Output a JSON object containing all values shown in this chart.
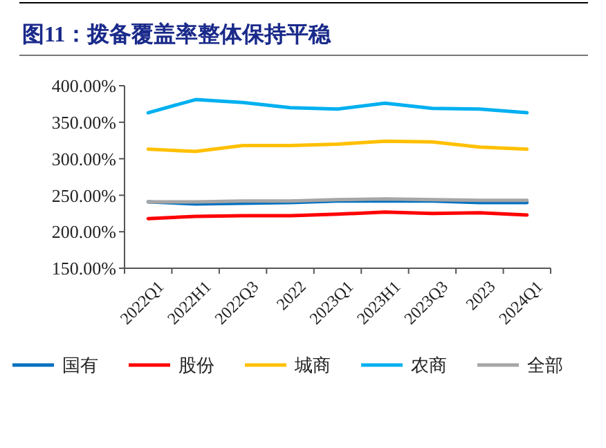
{
  "chart_data": {
    "type": "line",
    "title": "图11：拨备覆盖率整体保持平稳",
    "categories": [
      "2022Q1",
      "2022H1",
      "2022Q3",
      "2022",
      "2023Q1",
      "2023H1",
      "2023Q3",
      "2023",
      "2024Q1"
    ],
    "series": [
      {
        "name": "国有",
        "color": "#0070c0",
        "values": [
          241,
          238,
          239,
          240,
          242,
          242,
          242,
          240,
          240
        ]
      },
      {
        "name": "股份",
        "color": "#ff0000",
        "values": [
          218,
          221,
          222,
          222,
          224,
          227,
          225,
          226,
          223
        ]
      },
      {
        "name": "城商",
        "color": "#ffc000",
        "values": [
          313,
          310,
          318,
          318,
          320,
          324,
          323,
          316,
          313
        ]
      },
      {
        "name": "农商",
        "color": "#00b0f0",
        "values": [
          363,
          381,
          377,
          370,
          368,
          376,
          369,
          368,
          363
        ]
      },
      {
        "name": "全部",
        "color": "#a6a6a6",
        "values": [
          241,
          241,
          242,
          242,
          244,
          245,
          244,
          243,
          243
        ]
      }
    ],
    "ylim": [
      150,
      400
    ],
    "yticks": [
      {
        "value": 150,
        "label": "150.00%"
      },
      {
        "value": 200,
        "label": "200.00%"
      },
      {
        "value": 250,
        "label": "250.00%"
      },
      {
        "value": 300,
        "label": "300.00%"
      },
      {
        "value": 350,
        "label": "350.00%"
      },
      {
        "value": 400,
        "label": "400.00%"
      }
    ],
    "grid": false,
    "legend": "bottom",
    "marker": "none",
    "line_style": "solid"
  }
}
